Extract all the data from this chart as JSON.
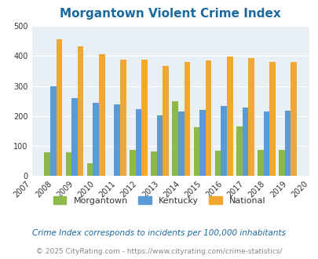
{
  "title": "Morgantown Violent Crime Index",
  "years": [
    2007,
    2008,
    2009,
    2010,
    2011,
    2012,
    2013,
    2014,
    2015,
    2016,
    2017,
    2018,
    2019,
    2020
  ],
  "morgantown": [
    0,
    80,
    80,
    42,
    0,
    87,
    82,
    248,
    163,
    84,
    166,
    87,
    87,
    0
  ],
  "kentucky": [
    0,
    298,
    260,
    244,
    240,
    224,
    202,
    214,
    220,
    234,
    229,
    215,
    217,
    0
  ],
  "national": [
    0,
    455,
    432,
    405,
    387,
    387,
    368,
    379,
    384,
    398,
    394,
    381,
    379,
    0
  ],
  "plot_years": [
    2008,
    2009,
    2010,
    2011,
    2012,
    2013,
    2014,
    2015,
    2016,
    2017,
    2018,
    2019
  ],
  "morg_vals": [
    80,
    80,
    42,
    0,
    87,
    82,
    248,
    163,
    84,
    166,
    87,
    87
  ],
  "kent_vals": [
    298,
    260,
    244,
    240,
    224,
    202,
    214,
    220,
    234,
    229,
    215,
    217
  ],
  "natl_vals": [
    455,
    432,
    405,
    387,
    387,
    368,
    379,
    384,
    398,
    394,
    381,
    379
  ],
  "bar_width": 0.28,
  "morgantown_color": "#8db84a",
  "kentucky_color": "#5b9bd5",
  "national_color": "#f0a830",
  "bg_color": "#e8f0f5",
  "ylim": [
    0,
    500
  ],
  "yticks": [
    0,
    100,
    200,
    300,
    400,
    500
  ],
  "all_years": [
    2007,
    2008,
    2009,
    2010,
    2011,
    2012,
    2013,
    2014,
    2015,
    2016,
    2017,
    2018,
    2019,
    2020
  ],
  "legend_labels": [
    "Morgantown",
    "Kentucky",
    "National"
  ],
  "footnote1": "Crime Index corresponds to incidents per 100,000 inhabitants",
  "footnote2": "© 2025 CityRating.com - https://www.cityrating.com/crime-statistics/",
  "title_color": "#1a6aa0",
  "footnote1_color": "#1a6aa0",
  "footnote2_color": "#888888"
}
